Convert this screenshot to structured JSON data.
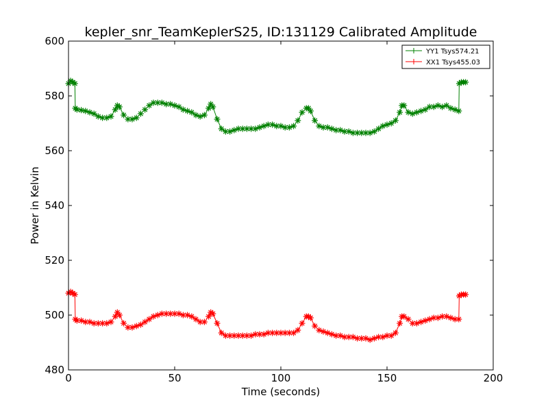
{
  "chart_data": {
    "type": "line",
    "title": "kepler_snr_TeamKeplerS25, ID:131129 Calibrated Amplitude",
    "xlabel": "Time (seconds)",
    "ylabel": "Power in Kelvin",
    "xlim": [
      0,
      200
    ],
    "ylim": [
      480,
      600
    ],
    "xticks": [
      0,
      50,
      100,
      150,
      200
    ],
    "yticks": [
      480,
      500,
      520,
      540,
      560,
      580,
      600
    ],
    "grid": false,
    "legend_position": "top-right",
    "marker": "plus",
    "series": [
      {
        "name": "YY1 Tsys574.21",
        "color": "#008000",
        "x": [
          0,
          1,
          2,
          3,
          3.2,
          4,
          6,
          8,
          10,
          12,
          14,
          16,
          18,
          20,
          22,
          23,
          24,
          26,
          28,
          30,
          32,
          34,
          36,
          38,
          40,
          42,
          44,
          46,
          48,
          50,
          52,
          54,
          56,
          58,
          60,
          62,
          64,
          66,
          67,
          68,
          70,
          72,
          74,
          76,
          78,
          80,
          82,
          84,
          86,
          88,
          90,
          92,
          94,
          96,
          98,
          100,
          102,
          104,
          106,
          108,
          110,
          112,
          113,
          114,
          116,
          118,
          120,
          122,
          124,
          126,
          128,
          130,
          132,
          134,
          136,
          138,
          140,
          142,
          144,
          146,
          148,
          150,
          152,
          154,
          156,
          157,
          158,
          160,
          162,
          164,
          166,
          168,
          170,
          172,
          174,
          176,
          178,
          180,
          182,
          183.8,
          184,
          185,
          186,
          187
        ],
        "y": [
          584.5,
          585.5,
          585,
          584.5,
          575.5,
          575,
          574.8,
          574.5,
          574,
          573.5,
          572.5,
          572,
          572,
          572.5,
          575,
          576.5,
          576,
          573,
          571.5,
          571.5,
          572,
          573.5,
          575,
          576.5,
          577.5,
          577.5,
          577.5,
          577,
          577,
          576.5,
          576,
          575,
          574.5,
          574,
          573,
          572.5,
          573,
          575.5,
          577,
          576,
          571.5,
          568,
          567,
          567,
          567.5,
          568,
          568,
          568,
          568,
          568,
          568.5,
          569,
          569.5,
          569.5,
          569,
          569,
          568.5,
          568.5,
          569,
          571,
          574,
          575.5,
          575.5,
          574.5,
          571,
          569,
          568.5,
          568.5,
          568,
          567.5,
          567.5,
          567,
          567,
          566.5,
          566.5,
          566.5,
          566.5,
          566.5,
          567,
          568,
          569,
          569.5,
          570,
          571,
          574,
          576.5,
          576.5,
          574,
          573.5,
          574,
          574.5,
          575,
          576,
          576,
          576.5,
          576,
          576.5,
          575.5,
          575,
          574.5,
          584.5,
          585,
          585,
          585
        ]
      },
      {
        "name": "XX1 Tsys455.03",
        "color": "#ff0000",
        "x": [
          0,
          1,
          2,
          3,
          3.2,
          4,
          6,
          8,
          10,
          12,
          14,
          16,
          18,
          20,
          22,
          23,
          24,
          26,
          28,
          30,
          32,
          34,
          36,
          38,
          40,
          42,
          44,
          46,
          48,
          50,
          52,
          54,
          56,
          58,
          60,
          62,
          64,
          66,
          67,
          68,
          70,
          72,
          74,
          76,
          78,
          80,
          82,
          84,
          86,
          88,
          90,
          92,
          94,
          96,
          98,
          100,
          102,
          104,
          106,
          108,
          110,
          112,
          113,
          114,
          116,
          118,
          120,
          122,
          124,
          126,
          128,
          130,
          132,
          134,
          136,
          138,
          140,
          142,
          144,
          146,
          148,
          150,
          152,
          154,
          156,
          157,
          158,
          160,
          162,
          164,
          166,
          168,
          170,
          172,
          174,
          176,
          178,
          180,
          182,
          183.8,
          184,
          185,
          186,
          187
        ],
        "y": [
          508,
          508.5,
          508,
          507.5,
          498.5,
          498,
          498,
          497.5,
          497.5,
          497,
          497,
          497,
          497,
          497.5,
          499.5,
          501,
          500,
          497,
          495.5,
          495.5,
          496,
          496.5,
          497.5,
          498.5,
          499.5,
          500,
          500.5,
          500.5,
          500.5,
          500.5,
          500.5,
          500,
          500,
          499.5,
          498.5,
          497.5,
          497.5,
          499.5,
          501,
          500.5,
          497,
          493.5,
          492.5,
          492.5,
          492.5,
          492.5,
          492.5,
          492.5,
          492.5,
          493,
          493,
          493,
          493.5,
          493.5,
          493.5,
          493.5,
          493.5,
          493.5,
          493.5,
          494.5,
          497,
          499.5,
          499.5,
          499,
          496,
          494.5,
          494,
          493.5,
          493,
          492.5,
          492.5,
          492,
          492,
          492,
          491.5,
          491.5,
          491.5,
          491,
          491.5,
          492,
          492,
          492.5,
          492.5,
          493.5,
          497,
          499.5,
          499.5,
          498.5,
          497,
          497,
          497.5,
          498,
          498.5,
          499,
          499,
          499.5,
          499.5,
          499,
          498.5,
          498.5,
          507,
          507.5,
          507.5,
          507.5
        ]
      }
    ]
  }
}
